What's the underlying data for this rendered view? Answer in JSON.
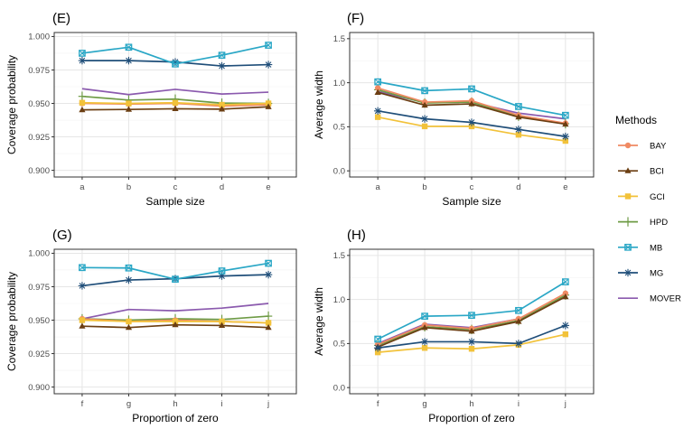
{
  "chart_data": {
    "type": "line",
    "legend": {
      "title": "Methods",
      "placement": "right",
      "entries": [
        {
          "name": "BAY",
          "color": "#F08A63",
          "marker": "circle"
        },
        {
          "name": "BCI",
          "color": "#6B3E12",
          "marker": "triangle"
        },
        {
          "name": "GCI",
          "color": "#F2C23A",
          "marker": "square"
        },
        {
          "name": "HPD",
          "color": "#6E9B45",
          "marker": "plus"
        },
        {
          "name": "MB",
          "color": "#2AA7C6",
          "marker": "boxed-x"
        },
        {
          "name": "MG",
          "color": "#1F4E79",
          "marker": "asterisk"
        },
        {
          "name": "MOVER",
          "color": "#8B5AAE",
          "marker": "none"
        }
      ]
    },
    "panels": [
      {
        "tag": "(E)",
        "xlabel": "Sample size",
        "ylabel": "Coverage probability",
        "categories": [
          "a",
          "b",
          "c",
          "d",
          "e"
        ],
        "ylim": [
          0.895,
          1.003
        ],
        "yticks": [
          0.9,
          0.925,
          0.95,
          0.975,
          1.0
        ],
        "ytick_labels": [
          "0.900",
          "0.925",
          "0.950",
          "0.975",
          "1.000"
        ],
        "grid": true,
        "series": [
          {
            "name": "BAY",
            "values": [
              0.95,
              0.9495,
              0.95,
              0.948,
              0.949
            ]
          },
          {
            "name": "BCI",
            "values": [
              0.9452,
              0.9455,
              0.946,
              0.9457,
              0.9475
            ]
          },
          {
            "name": "GCI",
            "values": [
              0.9505,
              0.95,
              0.9505,
              0.949,
              0.95
            ]
          },
          {
            "name": "HPD",
            "values": [
              0.9553,
              0.9525,
              0.9532,
              0.9502,
              0.95
            ]
          },
          {
            "name": "MB",
            "values": [
              0.9875,
              0.992,
              0.9795,
              0.986,
              0.9935
            ]
          },
          {
            "name": "MG",
            "values": [
              0.982,
              0.982,
              0.981,
              0.978,
              0.979
            ]
          },
          {
            "name": "MOVER",
            "values": [
              0.961,
              0.9566,
              0.9605,
              0.957,
              0.9584
            ]
          }
        ]
      },
      {
        "tag": "(F)",
        "xlabel": "Sample size",
        "ylabel": "Average width",
        "categories": [
          "a",
          "b",
          "c",
          "d",
          "e"
        ],
        "ylim": [
          -0.07,
          1.57
        ],
        "yticks": [
          0.0,
          0.5,
          1.0,
          1.5
        ],
        "ytick_labels": [
          "0.0",
          "0.5",
          "1.0",
          "1.5"
        ],
        "grid": true,
        "series": [
          {
            "name": "BAY",
            "values": [
              0.94,
              0.78,
              0.795,
              0.63,
              0.54
            ]
          },
          {
            "name": "BCI",
            "values": [
              0.89,
              0.745,
              0.76,
              0.61,
              0.53
            ]
          },
          {
            "name": "GCI",
            "values": [
              0.61,
              0.505,
              0.505,
              0.41,
              0.34
            ]
          },
          {
            "name": "HPD",
            "values": [
              0.92,
              0.77,
              0.78,
              0.62,
              0.535
            ]
          },
          {
            "name": "MB",
            "values": [
              1.01,
              0.91,
              0.93,
              0.73,
              0.63
            ]
          },
          {
            "name": "MG",
            "values": [
              0.68,
              0.59,
              0.55,
              0.47,
              0.39
            ]
          },
          {
            "name": "MOVER",
            "values": [
              0.9,
              0.775,
              0.78,
              0.655,
              0.59
            ]
          }
        ]
      },
      {
        "tag": "(G)",
        "xlabel": "Proportion of zero",
        "ylabel": "Coverage probability",
        "categories": [
          "f",
          "g",
          "h",
          "i",
          "j"
        ],
        "ylim": [
          0.895,
          1.003
        ],
        "yticks": [
          0.9,
          0.925,
          0.95,
          0.975,
          1.0
        ],
        "ytick_labels": [
          "0.900",
          "0.925",
          "0.950",
          "0.975",
          "1.000"
        ],
        "grid": true,
        "series": [
          {
            "name": "BAY",
            "values": [
              0.951,
              0.949,
              0.95,
              0.949,
              0.948
            ]
          },
          {
            "name": "BCI",
            "values": [
              0.9455,
              0.9445,
              0.9465,
              0.946,
              0.9445
            ]
          },
          {
            "name": "GCI",
            "values": [
              0.95,
              0.949,
              0.949,
              0.949,
              0.948
            ]
          },
          {
            "name": "HPD",
            "values": [
              0.951,
              0.95,
              0.951,
              0.9505,
              0.953
            ]
          },
          {
            "name": "MB",
            "values": [
              0.9893,
              0.989,
              0.9806,
              0.9868,
              0.9925
            ]
          },
          {
            "name": "MG",
            "values": [
              0.9757,
              0.98,
              0.981,
              0.983,
              0.984
            ]
          },
          {
            "name": "MOVER",
            "values": [
              0.951,
              0.958,
              0.957,
              0.959,
              0.9625
            ]
          }
        ]
      },
      {
        "tag": "(H)",
        "xlabel": "Proportion of zero",
        "ylabel": "Average width",
        "categories": [
          "f",
          "g",
          "h",
          "i",
          "j"
        ],
        "ylim": [
          -0.07,
          1.57
        ],
        "yticks": [
          0.0,
          0.5,
          1.0,
          1.5
        ],
        "ytick_labels": [
          "0.0",
          "0.5",
          "1.0",
          "1.5"
        ],
        "grid": true,
        "series": [
          {
            "name": "BAY",
            "values": [
              0.49,
              0.71,
              0.67,
              0.78,
              1.07
            ]
          },
          {
            "name": "BCI",
            "values": [
              0.46,
              0.68,
              0.64,
              0.75,
              1.03
            ]
          },
          {
            "name": "GCI",
            "values": [
              0.4,
              0.45,
              0.44,
              0.485,
              0.605
            ]
          },
          {
            "name": "HPD",
            "values": [
              0.48,
              0.69,
              0.66,
              0.76,
              1.05
            ]
          },
          {
            "name": "MB",
            "values": [
              0.55,
              0.81,
              0.82,
              0.875,
              1.2
            ]
          },
          {
            "name": "MG",
            "values": [
              0.45,
              0.52,
              0.52,
              0.5,
              0.705
            ]
          },
          {
            "name": "MOVER",
            "values": [
              0.5,
              0.72,
              0.68,
              0.78,
              1.03
            ]
          }
        ]
      }
    ]
  }
}
